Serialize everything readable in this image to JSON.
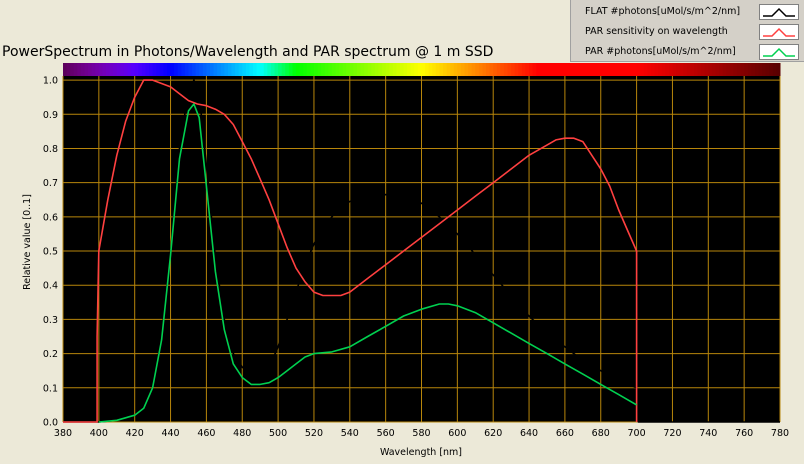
{
  "chart_data": {
    "type": "line",
    "title": "PowerSpectrum in Photons/Wavelength and PAR spectrum @ 1 m SSD",
    "xlabel": "Wavelength [nm]",
    "ylabel": "Relative value [0..1]",
    "xlim": [
      380,
      780
    ],
    "ylim": [
      0,
      1.05
    ],
    "x_ticks": [
      380,
      400,
      420,
      440,
      460,
      480,
      500,
      520,
      540,
      560,
      580,
      600,
      620,
      640,
      660,
      680,
      700,
      720,
      740,
      760,
      780
    ],
    "y_ticks": [
      0.0,
      0.1,
      0.2,
      0.3,
      0.4,
      0.5,
      0.6,
      0.7,
      0.8,
      0.9,
      1.0
    ],
    "grid": true,
    "legend_position": "top-right",
    "background_color": "#000000",
    "grid_color": "#b8860b",
    "series": [
      {
        "name": "FLAT #photons[uMol/s/m^2/nm]",
        "color": "#000000",
        "points": [
          [
            380,
            0
          ],
          [
            400,
            0
          ],
          [
            410,
            0.005
          ],
          [
            420,
            0.02
          ],
          [
            425,
            0.04
          ],
          [
            430,
            0.1
          ],
          [
            435,
            0.25
          ],
          [
            440,
            0.5
          ],
          [
            445,
            0.8
          ],
          [
            450,
            0.97
          ],
          [
            453,
            1.0
          ],
          [
            456,
            0.96
          ],
          [
            460,
            0.75
          ],
          [
            465,
            0.48
          ],
          [
            470,
            0.3
          ],
          [
            475,
            0.2
          ],
          [
            480,
            0.16
          ],
          [
            485,
            0.14
          ],
          [
            490,
            0.14
          ],
          [
            495,
            0.16
          ],
          [
            500,
            0.22
          ],
          [
            505,
            0.3
          ],
          [
            510,
            0.38
          ],
          [
            515,
            0.46
          ],
          [
            520,
            0.52
          ],
          [
            525,
            0.57
          ],
          [
            530,
            0.6
          ],
          [
            535,
            0.63
          ],
          [
            540,
            0.645
          ],
          [
            550,
            0.66
          ],
          [
            560,
            0.665
          ],
          [
            570,
            0.66
          ],
          [
            580,
            0.64
          ],
          [
            590,
            0.6
          ],
          [
            600,
            0.55
          ],
          [
            610,
            0.49
          ],
          [
            620,
            0.43
          ],
          [
            630,
            0.37
          ],
          [
            640,
            0.31
          ],
          [
            650,
            0.26
          ],
          [
            660,
            0.22
          ],
          [
            670,
            0.18
          ],
          [
            680,
            0.15
          ],
          [
            690,
            0.12
          ],
          [
            700,
            0.1
          ],
          [
            701,
            0
          ],
          [
            780,
            0
          ]
        ]
      },
      {
        "name": "PAR sensitivity on wavelength",
        "color": "#ff4040",
        "points": [
          [
            380,
            0
          ],
          [
            399,
            0
          ],
          [
            399,
            0.25
          ],
          [
            400,
            0.5
          ],
          [
            405,
            0.65
          ],
          [
            410,
            0.78
          ],
          [
            415,
            0.88
          ],
          [
            420,
            0.95
          ],
          [
            425,
            1.0
          ],
          [
            430,
            1.0
          ],
          [
            435,
            0.99
          ],
          [
            440,
            0.98
          ],
          [
            445,
            0.96
          ],
          [
            450,
            0.94
          ],
          [
            455,
            0.93
          ],
          [
            460,
            0.925
          ],
          [
            465,
            0.915
          ],
          [
            470,
            0.9
          ],
          [
            475,
            0.87
          ],
          [
            480,
            0.82
          ],
          [
            485,
            0.77
          ],
          [
            490,
            0.71
          ],
          [
            495,
            0.65
          ],
          [
            500,
            0.58
          ],
          [
            505,
            0.51
          ],
          [
            510,
            0.45
          ],
          [
            515,
            0.41
          ],
          [
            520,
            0.38
          ],
          [
            525,
            0.37
          ],
          [
            530,
            0.37
          ],
          [
            535,
            0.37
          ],
          [
            540,
            0.38
          ],
          [
            545,
            0.4
          ],
          [
            550,
            0.42
          ],
          [
            560,
            0.46
          ],
          [
            570,
            0.5
          ],
          [
            580,
            0.54
          ],
          [
            590,
            0.58
          ],
          [
            600,
            0.62
          ],
          [
            610,
            0.66
          ],
          [
            620,
            0.7
          ],
          [
            630,
            0.74
          ],
          [
            640,
            0.78
          ],
          [
            650,
            0.81
          ],
          [
            655,
            0.825
          ],
          [
            660,
            0.83
          ],
          [
            665,
            0.83
          ],
          [
            670,
            0.82
          ],
          [
            675,
            0.78
          ],
          [
            680,
            0.74
          ],
          [
            685,
            0.69
          ],
          [
            690,
            0.62
          ],
          [
            695,
            0.56
          ],
          [
            700,
            0.5
          ],
          [
            700,
            0
          ]
        ]
      },
      {
        "name": "PAR #photons[uMol/s/m^2/nm]",
        "color": "#00d050",
        "points": [
          [
            400,
            0
          ],
          [
            410,
            0.005
          ],
          [
            420,
            0.02
          ],
          [
            425,
            0.04
          ],
          [
            430,
            0.1
          ],
          [
            435,
            0.24
          ],
          [
            440,
            0.49
          ],
          [
            445,
            0.77
          ],
          [
            450,
            0.91
          ],
          [
            453,
            0.93
          ],
          [
            456,
            0.89
          ],
          [
            460,
            0.69
          ],
          [
            465,
            0.44
          ],
          [
            470,
            0.27
          ],
          [
            475,
            0.17
          ],
          [
            480,
            0.13
          ],
          [
            485,
            0.11
          ],
          [
            490,
            0.11
          ],
          [
            495,
            0.115
          ],
          [
            500,
            0.13
          ],
          [
            505,
            0.15
          ],
          [
            510,
            0.17
          ],
          [
            515,
            0.19
          ],
          [
            520,
            0.2
          ],
          [
            530,
            0.205
          ],
          [
            540,
            0.22
          ],
          [
            550,
            0.25
          ],
          [
            560,
            0.28
          ],
          [
            570,
            0.31
          ],
          [
            580,
            0.33
          ],
          [
            590,
            0.345
          ],
          [
            595,
            0.345
          ],
          [
            600,
            0.34
          ],
          [
            610,
            0.32
          ],
          [
            620,
            0.29
          ],
          [
            630,
            0.26
          ],
          [
            640,
            0.23
          ],
          [
            650,
            0.2
          ],
          [
            660,
            0.17
          ],
          [
            670,
            0.14
          ],
          [
            680,
            0.11
          ],
          [
            690,
            0.08
          ],
          [
            700,
            0.05
          ]
        ]
      }
    ]
  }
}
